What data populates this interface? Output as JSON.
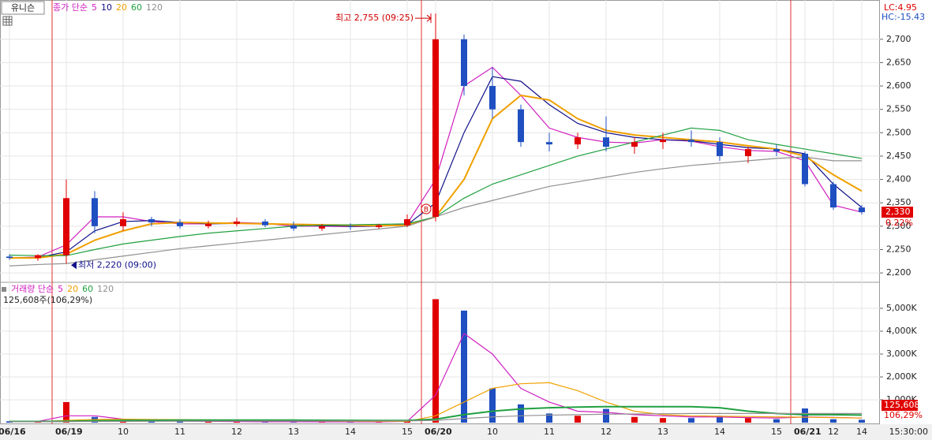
{
  "stock_name": "유니슨",
  "time_label": "15:30:00",
  "chart_data": [
    {
      "type": "candlestick",
      "legend_prefix": "종가 단순",
      "lc": "LC:4.95",
      "hc": "HC:-15.43",
      "high_note": "최고 2,755 (09:25)",
      "low_note": "최저 2,220 (09:00)",
      "signal": "B",
      "last_price_label": "2,330",
      "change_label": "0.22%",
      "up_color": "#e00000",
      "down_color": "#1f4fc0",
      "categories": [
        "06/16",
        null,
        "06/19",
        null,
        "10",
        null,
        "11",
        null,
        "12",
        null,
        "13",
        null,
        "14",
        null,
        "15",
        "06/20",
        null,
        "10",
        null,
        "11",
        null,
        "12",
        null,
        "13",
        null,
        "14",
        null,
        "15",
        "06/21",
        "12",
        "14"
      ],
      "open": [
        2235,
        2232,
        2238,
        2360,
        2300,
        2315,
        2308,
        2300,
        2305,
        2310,
        2302,
        2295,
        2300,
        2298,
        2302,
        2320,
        2700,
        2600,
        2550,
        2480,
        2475,
        2490,
        2470,
        2480,
        2485,
        2480,
        2450,
        2465,
        2455,
        2390,
        2340
      ],
      "high": [
        2240,
        2240,
        2400,
        2375,
        2330,
        2320,
        2315,
        2312,
        2318,
        2315,
        2310,
        2305,
        2306,
        2305,
        2325,
        2755,
        2710,
        2640,
        2560,
        2500,
        2500,
        2535,
        2490,
        2500,
        2505,
        2490,
        2470,
        2475,
        2460,
        2395,
        2345
      ],
      "low": [
        2228,
        2226,
        2220,
        2285,
        2290,
        2300,
        2295,
        2295,
        2300,
        2298,
        2290,
        2290,
        2292,
        2295,
        2298,
        2310,
        2580,
        2530,
        2470,
        2460,
        2465,
        2460,
        2455,
        2465,
        2470,
        2440,
        2435,
        2450,
        2385,
        2335,
        2325
      ],
      "close": [
        2232,
        2238,
        2360,
        2300,
        2315,
        2308,
        2300,
        2305,
        2310,
        2302,
        2295,
        2300,
        2298,
        2302,
        2315,
        2700,
        2600,
        2550,
        2480,
        2475,
        2490,
        2470,
        2480,
        2485,
        2480,
        2450,
        2465,
        2460,
        2390,
        2340,
        2330
      ],
      "series": [
        {
          "name": "5",
          "color": "#d020c0",
          "values": [
            2232,
            2234,
            2260,
            2320,
            2320,
            2310,
            2305,
            2305,
            2308,
            2306,
            2300,
            2300,
            2299,
            2300,
            2305,
            2400,
            2600,
            2640,
            2580,
            2510,
            2490,
            2480,
            2478,
            2485,
            2482,
            2470,
            2462,
            2460,
            2440,
            2345,
            2330
          ]
        },
        {
          "name": "10",
          "color": "#10108a",
          "values": [
            2232,
            2233,
            2245,
            2290,
            2310,
            2312,
            2308,
            2305,
            2306,
            2306,
            2303,
            2301,
            2300,
            2300,
            2303,
            2350,
            2500,
            2620,
            2610,
            2560,
            2520,
            2500,
            2490,
            2485,
            2483,
            2475,
            2468,
            2465,
            2455,
            2390,
            2340
          ]
        },
        {
          "name": "20",
          "color": "#f0a000",
          "values": [
            2232,
            2232,
            2240,
            2270,
            2290,
            2305,
            2308,
            2307,
            2306,
            2305,
            2304,
            2303,
            2302,
            2301,
            2302,
            2320,
            2400,
            2530,
            2580,
            2570,
            2530,
            2505,
            2495,
            2490,
            2485,
            2480,
            2472,
            2465,
            2450,
            2410,
            2375
          ]
        },
        {
          "name": "60",
          "color": "#20a040",
          "values": [
            2238,
            2237,
            2237,
            2250,
            2262,
            2270,
            2278,
            2285,
            2290,
            2295,
            2300,
            2302,
            2303,
            2304,
            2305,
            2320,
            2360,
            2390,
            2410,
            2430,
            2450,
            2465,
            2480,
            2495,
            2510,
            2505,
            2485,
            2475,
            2465,
            2455,
            2445
          ]
        },
        {
          "name": "120",
          "color": "#909090",
          "values": [
            2215,
            2218,
            2220,
            2228,
            2236,
            2244,
            2252,
            2258,
            2264,
            2270,
            2276,
            2282,
            2288,
            2294,
            2300,
            2320,
            2340,
            2355,
            2370,
            2385,
            2395,
            2405,
            2415,
            2423,
            2430,
            2435,
            2440,
            2445,
            2448,
            2440,
            2440
          ]
        }
      ],
      "ylim": [
        2185,
        2784
      ],
      "yticks": [
        {
          "value": 2200,
          "label": "2,200"
        },
        {
          "value": 2250,
          "label": "2,250"
        },
        {
          "value": 2300,
          "label": "2,300"
        },
        {
          "value": 2350,
          "label": "2,350"
        },
        {
          "value": 2400,
          "label": "2,400"
        },
        {
          "value": 2450,
          "label": "2,450"
        },
        {
          "value": 2500,
          "label": "2,500"
        },
        {
          "value": 2550,
          "label": "2,550"
        },
        {
          "value": 2600,
          "label": "2,600"
        },
        {
          "value": 2650,
          "label": "2,650"
        },
        {
          "value": 2700,
          "label": "2,700"
        }
      ],
      "grid": true
    },
    {
      "type": "bar",
      "legend_prefix": "거래량 단순",
      "info": "125,608주(106,29%)",
      "last_label": "125,608",
      "ratio_label": "106,29%",
      "values": [
        60,
        50,
        900,
        250,
        80,
        60,
        50,
        40,
        40,
        30,
        40,
        30,
        30,
        40,
        120,
        5400,
        4900,
        1500,
        800,
        400,
        300,
        600,
        250,
        200,
        200,
        300,
        200,
        150,
        620,
        150,
        125.608
      ],
      "series": [
        {
          "name": "5",
          "color": "#d020c0",
          "values": [
            50,
            55,
            300,
            300,
            150,
            100,
            70,
            55,
            45,
            40,
            38,
            35,
            35,
            35,
            55,
            1200,
            3900,
            3000,
            1500,
            900,
            500,
            450,
            350,
            300,
            250,
            250,
            220,
            200,
            250,
            230,
            200
          ]
        },
        {
          "name": "20",
          "color": "#f0a000",
          "values": [
            40,
            40,
            100,
            140,
            150,
            140,
            130,
            120,
            100,
            90,
            80,
            70,
            60,
            55,
            55,
            300,
            900,
            1500,
            1700,
            1750,
            1400,
            900,
            500,
            350,
            300,
            280,
            270,
            250,
            240,
            220,
            200
          ]
        },
        {
          "name": "60",
          "color": "#20a040",
          "values": [
            50,
            50,
            60,
            80,
            100,
            105,
            110,
            110,
            110,
            110,
            110,
            105,
            100,
            95,
            95,
            150,
            350,
            500,
            600,
            650,
            680,
            700,
            700,
            700,
            700,
            650,
            500,
            400,
            350,
            350,
            330
          ]
        },
        {
          "name": "120",
          "color": "#909090",
          "values": [
            40,
            40,
            45,
            50,
            55,
            60,
            62,
            65,
            66,
            68,
            70,
            70,
            72,
            72,
            75,
            100,
            180,
            250,
            300,
            330,
            350,
            370,
            380,
            390,
            400,
            400,
            400,
            400,
            400,
            400,
            400
          ]
        }
      ],
      "ylim": [
        0,
        6000
      ],
      "yticks": [
        {
          "value": 1000,
          "label": "1,000K"
        },
        {
          "value": 2000,
          "label": "2,000K"
        },
        {
          "value": 3000,
          "label": "3,000K"
        },
        {
          "value": 4000,
          "label": "4,000K"
        },
        {
          "value": 5000,
          "label": "5,000K"
        }
      ],
      "grid": true
    }
  ]
}
